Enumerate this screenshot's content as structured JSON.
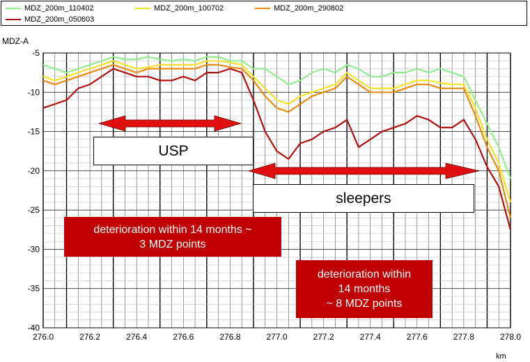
{
  "chart_data": {
    "type": "line",
    "ylabel": "MDZ-A",
    "xlabel": "km",
    "xlim": [
      276.0,
      278.0
    ],
    "ylim": [
      -40,
      -5
    ],
    "x_ticks": [
      "276.0",
      "276.2",
      "276.4",
      "276.6",
      "276.8",
      "277.0",
      "277.2",
      "277.4",
      "277.6",
      "277.8",
      "278.0"
    ],
    "y_ticks": [
      "-5",
      "-10",
      "-15",
      "-20",
      "-25",
      "-30",
      "-35",
      "-40"
    ],
    "grid": true,
    "legend_position": "top",
    "series": [
      {
        "name": "MDZ_200m_110402",
        "color": "#90ee90",
        "x": [
          276.0,
          276.05,
          276.1,
          276.15,
          276.2,
          276.25,
          276.3,
          276.35,
          276.4,
          276.45,
          276.5,
          276.55,
          276.6,
          276.65,
          276.7,
          276.75,
          276.8,
          276.85,
          276.9,
          276.95,
          277.0,
          277.05,
          277.1,
          277.15,
          277.2,
          277.25,
          277.3,
          277.35,
          277.4,
          277.45,
          277.5,
          277.55,
          277.6,
          277.65,
          277.7,
          277.75,
          277.8,
          277.85,
          277.9,
          277.95,
          278.0
        ],
        "y": [
          -6.5,
          -7,
          -7.5,
          -7,
          -6.5,
          -6,
          -5.5,
          -5.8,
          -5.8,
          -5.5,
          -5.8,
          -6,
          -5.8,
          -6,
          -5.5,
          -5.5,
          -6,
          -6,
          -7,
          -7,
          -8,
          -9,
          -8.5,
          -7.5,
          -7,
          -7.5,
          -6.5,
          -7,
          -8,
          -8,
          -7.5,
          -7.5,
          -7,
          -7.5,
          -7,
          -7.5,
          -8,
          -11,
          -14,
          -17,
          -21
        ]
      },
      {
        "name": "MDZ_200m_100702",
        "color": "#f5e22b",
        "x": [
          276.0,
          276.05,
          276.1,
          276.15,
          276.2,
          276.25,
          276.3,
          276.35,
          276.4,
          276.45,
          276.5,
          276.55,
          276.6,
          276.65,
          276.7,
          276.75,
          276.8,
          276.85,
          276.9,
          276.95,
          277.0,
          277.05,
          277.1,
          277.15,
          277.2,
          277.25,
          277.3,
          277.35,
          277.4,
          277.45,
          277.5,
          277.55,
          277.6,
          277.65,
          277.7,
          277.75,
          277.8,
          277.85,
          277.9,
          277.95,
          278.0
        ],
        "y": [
          -8,
          -8.5,
          -8,
          -7.5,
          -7,
          -6.5,
          -6,
          -6.5,
          -7,
          -6.8,
          -6.5,
          -6.5,
          -6.5,
          -6.5,
          -6,
          -6,
          -6.2,
          -6.5,
          -8,
          -9.5,
          -11,
          -11.5,
          -10.5,
          -10,
          -9.5,
          -9,
          -7.5,
          -8.5,
          -9.5,
          -9.5,
          -9.5,
          -9,
          -8.5,
          -8.5,
          -8.8,
          -9,
          -9,
          -12,
          -16,
          -19,
          -24
        ]
      },
      {
        "name": "MDZ_200m_290802",
        "color": "#e88a10",
        "x": [
          276.0,
          276.05,
          276.1,
          276.15,
          276.2,
          276.25,
          276.3,
          276.35,
          276.4,
          276.45,
          276.5,
          276.55,
          276.6,
          276.65,
          276.7,
          276.75,
          276.8,
          276.85,
          276.9,
          276.95,
          277.0,
          277.05,
          277.1,
          277.15,
          277.2,
          277.25,
          277.3,
          277.35,
          277.4,
          277.45,
          277.5,
          277.55,
          277.6,
          277.65,
          277.7,
          277.75,
          277.8,
          277.85,
          277.9,
          277.95,
          278.0
        ],
        "y": [
          -8.5,
          -9,
          -8.5,
          -8,
          -7.5,
          -7,
          -6.5,
          -7,
          -7.5,
          -7,
          -7,
          -7,
          -7,
          -7,
          -6.5,
          -6.5,
          -6.8,
          -7,
          -8.5,
          -10.5,
          -12,
          -12.5,
          -11.5,
          -10.5,
          -10,
          -9.5,
          -8,
          -9,
          -10,
          -10,
          -10,
          -9.5,
          -9,
          -9,
          -9.5,
          -9.5,
          -9.5,
          -13,
          -17,
          -20,
          -26
        ]
      },
      {
        "name": "MDZ_200m_050603",
        "color": "#b01010",
        "x": [
          276.0,
          276.05,
          276.1,
          276.15,
          276.2,
          276.25,
          276.3,
          276.35,
          276.4,
          276.45,
          276.5,
          276.55,
          276.6,
          276.65,
          276.7,
          276.75,
          276.8,
          276.85,
          276.9,
          276.95,
          277.0,
          277.05,
          277.1,
          277.15,
          277.2,
          277.25,
          277.3,
          277.35,
          277.4,
          277.45,
          277.5,
          277.55,
          277.6,
          277.65,
          277.7,
          277.75,
          277.8,
          277.85,
          277.9,
          277.95,
          278.0
        ],
        "y": [
          -12,
          -11.5,
          -11,
          -9.5,
          -9,
          -8,
          -7,
          -7.5,
          -8,
          -8,
          -8.5,
          -8.5,
          -8,
          -8.5,
          -7.5,
          -7.5,
          -7,
          -7.5,
          -11,
          -15,
          -17.5,
          -18.5,
          -16.5,
          -16,
          -15,
          -14.5,
          -13.5,
          -17,
          -16,
          -15,
          -14.5,
          -14,
          -13,
          -13.5,
          -14.5,
          -14.5,
          -13.5,
          -16,
          -19.5,
          -22,
          -27.5
        ]
      }
    ],
    "annotations": {
      "usp_label": "USP",
      "sleepers_label": "sleepers",
      "box1_line1": "deterioration within 14 months  ~",
      "box1_line2": "3 MDZ points",
      "box2_line1": "deterioration within",
      "box2_line2": "14 months",
      "box2_line3": "~ 8 MDZ points"
    }
  }
}
